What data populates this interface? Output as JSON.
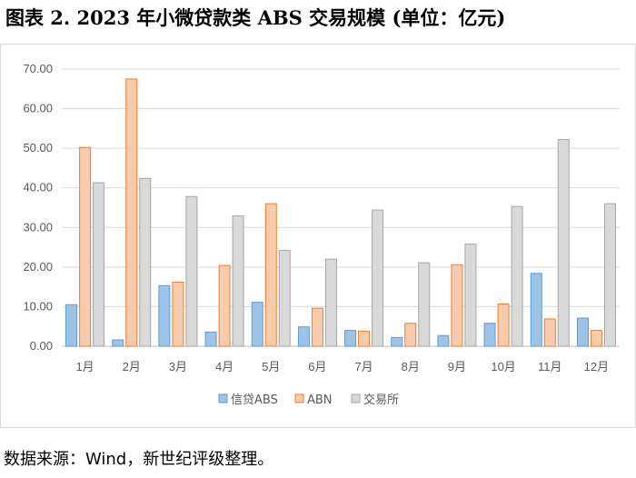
{
  "title": "图表 2. 2023 年小微贷款类 ABS 交易规模 (单位：亿元)",
  "source": "数据来源：Wind，新世纪评级整理。",
  "chart_data": {
    "type": "bar",
    "title": "",
    "xlabel": "",
    "ylabel": "",
    "ylim": [
      0,
      70
    ],
    "yticks": [
      "0.00",
      "10.00",
      "20.00",
      "30.00",
      "40.00",
      "50.00",
      "60.00",
      "70.00"
    ],
    "grid": true,
    "legend_position": "bottom",
    "categories": [
      "1月",
      "2月",
      "3月",
      "4月",
      "5月",
      "6月",
      "7月",
      "8月",
      "9月",
      "10月",
      "11月",
      "12月"
    ],
    "series": [
      {
        "name": "信贷ABS",
        "fill": "#9dc3e6",
        "stroke": "#5b9bd5",
        "values": [
          10.5,
          1.6,
          15.3,
          3.6,
          11.1,
          4.9,
          4.0,
          2.2,
          2.7,
          5.8,
          18.4,
          7.1
        ]
      },
      {
        "name": "ABN",
        "fill": "#f8cbad",
        "stroke": "#ed7d31",
        "values": [
          50.2,
          67.5,
          16.2,
          20.4,
          36.0,
          9.6,
          3.8,
          5.8,
          20.6,
          10.7,
          6.9,
          4.0
        ]
      },
      {
        "name": "交易所",
        "fill": "#d9d9d9",
        "stroke": "#a5a5a5",
        "values": [
          41.3,
          42.4,
          37.8,
          32.9,
          24.2,
          22.0,
          34.4,
          21.1,
          25.8,
          35.3,
          52.2,
          36.0
        ]
      }
    ]
  }
}
